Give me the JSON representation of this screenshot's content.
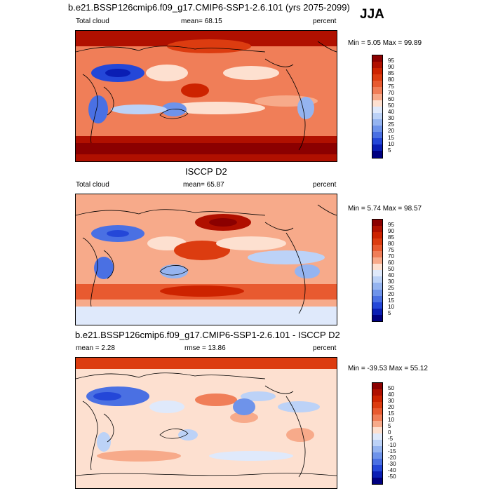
{
  "season": "JJA",
  "chart_data": [
    {
      "type": "heatmap",
      "title": "b.e21.BSSP126cmip6.f09_g17.CMIP6-SSP1-2.6.101 (yrs 2075-2099)",
      "left_label": "Total cloud",
      "stat_label": "mean=  68.15",
      "units": "percent",
      "minmax": "Min =   5.05 Max =  99.89",
      "min": 5.05,
      "max": 99.89,
      "mean": 68.15,
      "levels": [
        "95",
        "90",
        "85",
        "80",
        "75",
        "70",
        "60",
        "50",
        "40",
        "30",
        "25",
        "20",
        "15",
        "10",
        "5"
      ],
      "colors": [
        "#8b0000",
        "#b01000",
        "#cd2300",
        "#dc3c10",
        "#e85a30",
        "#f07e58",
        "#f7aa8a",
        "#fde0d0",
        "#dfe9fb",
        "#bcd2f7",
        "#95b4f0",
        "#6e93ea",
        "#4a70e3",
        "#2447d8",
        "#0a1eb4",
        "#000080"
      ]
    },
    {
      "type": "heatmap",
      "title": "ISCCP D2",
      "left_label": "Total cloud",
      "stat_label": "mean=  65.87",
      "units": "percent",
      "minmax": "Min =   5.74 Max =  98.57",
      "min": 5.74,
      "max": 98.57,
      "mean": 65.87,
      "levels": [
        "95",
        "90",
        "85",
        "80",
        "75",
        "70",
        "60",
        "50",
        "40",
        "30",
        "25",
        "20",
        "15",
        "10",
        "5"
      ],
      "colors": [
        "#8b0000",
        "#b01000",
        "#cd2300",
        "#dc3c10",
        "#e85a30",
        "#f07e58",
        "#f7aa8a",
        "#fde0d0",
        "#dfe9fb",
        "#bcd2f7",
        "#95b4f0",
        "#6e93ea",
        "#4a70e3",
        "#2447d8",
        "#0a1eb4",
        "#000080"
      ]
    },
    {
      "type": "heatmap",
      "title": "b.e21.BSSP126cmip6.f09_g17.CMIP6-SSP1-2.6.101 - ISCCP D2",
      "left_label": "mean =   2.28",
      "stat_label": "rmse =  13.86",
      "units": "percent",
      "minmax": "Min = -39.53 Max =  55.12",
      "min": -39.53,
      "max": 55.12,
      "mean": 2.28,
      "rmse": 13.86,
      "levels": [
        "50",
        "40",
        "30",
        "20",
        "15",
        "10",
        "5",
        "0",
        "-5",
        "-10",
        "-15",
        "-20",
        "-30",
        "-40",
        "-50"
      ],
      "colors": [
        "#8b0000",
        "#b01000",
        "#cd2300",
        "#dc3c10",
        "#e85a30",
        "#f07e58",
        "#f7aa8a",
        "#fde0d0",
        "#dfe9fb",
        "#bcd2f7",
        "#95b4f0",
        "#6e93ea",
        "#4a70e3",
        "#2447d8",
        "#0a1eb4",
        "#000080"
      ]
    }
  ]
}
